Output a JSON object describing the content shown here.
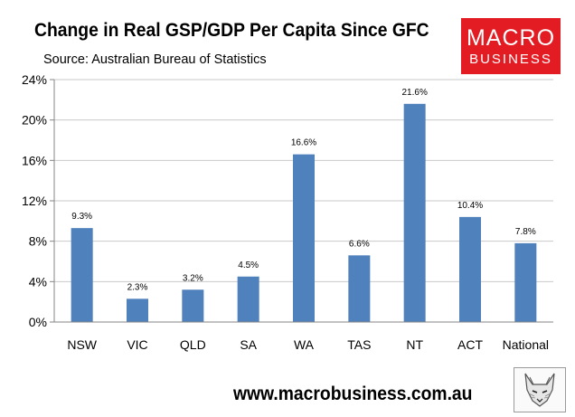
{
  "header": {
    "title": "Change in Real GSP/GDP Per Capita Since GFC",
    "subtitle": "Source: Australian Bureau of Statistics"
  },
  "logo": {
    "line1": "MACRO",
    "line2": "BUSINESS",
    "color": "#e31b23"
  },
  "footer": {
    "website": "www.macrobusiness.com.au",
    "mascot_icon": "fox-icon"
  },
  "colors": {
    "bar": "#4f81bd",
    "axis": "#868686",
    "gridline": "#c9c9c9"
  },
  "chart_data": {
    "type": "bar",
    "title": "Change in Real GSP/GDP Per Capita Since GFC",
    "subtitle": "Source: Australian Bureau of Statistics",
    "xlabel": "",
    "ylabel": "",
    "categories": [
      "NSW",
      "VIC",
      "QLD",
      "SA",
      "WA",
      "TAS",
      "NT",
      "ACT",
      "National"
    ],
    "values": [
      9.3,
      2.3,
      3.2,
      4.5,
      16.6,
      6.6,
      21.6,
      10.4,
      7.8
    ],
    "data_labels": [
      "9.3%",
      "2.3%",
      "3.2%",
      "4.5%",
      "16.6%",
      "6.6%",
      "21.6%",
      "10.4%",
      "7.8%"
    ],
    "ylim": [
      0,
      24
    ],
    "yticks": [
      0,
      4,
      8,
      12,
      16,
      20,
      24
    ],
    "ytick_labels": [
      "0%",
      "4%",
      "8%",
      "12%",
      "16%",
      "20%",
      "24%"
    ],
    "grid": true,
    "legend": "none"
  }
}
